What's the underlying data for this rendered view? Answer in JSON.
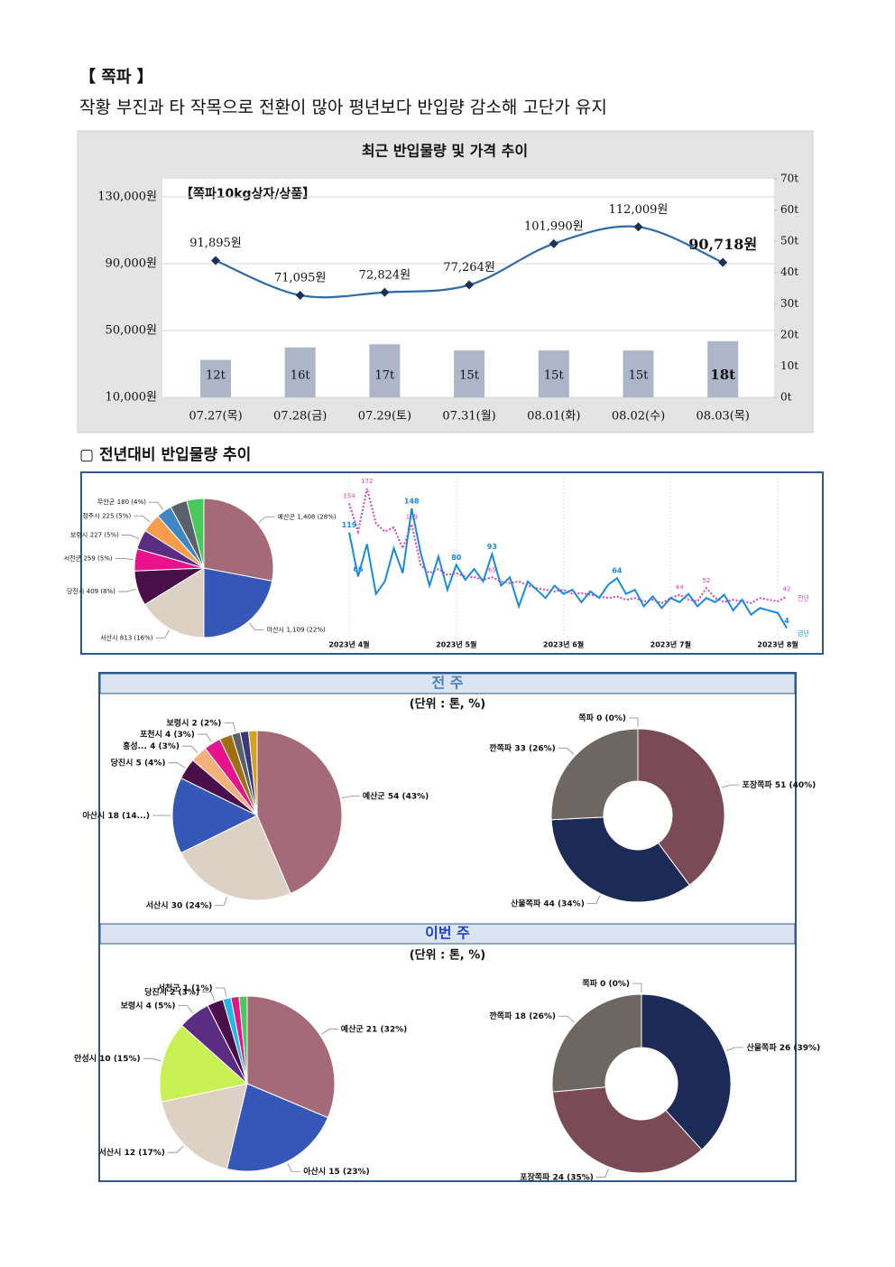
{
  "title": "【 쪽파 】",
  "subtitle": "작황 부진과 타 작목으로 전환이 많아 평년보다 반입량 감소해 고단가 유지",
  "section_title": "▢ 전년대비 반입물량 추이",
  "panels": [
    {
      "header": "전 주",
      "unit": "(단위 : 톤, %)"
    },
    {
      "header": "이번 주",
      "unit": "(단위 : 톤, %)"
    }
  ],
  "chart_data": [
    {
      "type": "bar_line",
      "title": "최근 반입물량 및 가격 추이",
      "annotation": "【쪽파10kg상자/상품】",
      "categories": [
        "07.27(목)",
        "07.28(금)",
        "07.29(토)",
        "07.31(월)",
        "08.01(화)",
        "08.02(수)",
        "08.03(목)"
      ],
      "series": [
        {
          "type": "line",
          "color": "#2e6aa8",
          "values": [
            91895,
            71095,
            72824,
            77264,
            101990,
            112009,
            90718
          ],
          "value_labels": [
            "91,895원",
            "71,095원",
            "72,824원",
            "77,264원",
            "101,990원",
            "112,009원",
            "90,718원"
          ]
        },
        {
          "type": "bar",
          "axis": "y2",
          "color": "#adb6c9",
          "values": [
            12,
            16,
            17,
            15,
            15,
            15,
            18
          ],
          "value_labels": [
            "12t",
            "16t",
            "17t",
            "15t",
            "15t",
            "15t",
            "18t"
          ]
        }
      ],
      "ylim": [
        10000,
        130000
      ],
      "yticks": [
        {
          "value": 10000,
          "label": "10,000원"
        },
        {
          "value": 50000,
          "label": "50,000원"
        },
        {
          "value": 90000,
          "label": "90,000원"
        },
        {
          "value": 130000,
          "label": "130,000원"
        }
      ],
      "y2lim": [
        0,
        70
      ],
      "y2ticks": [
        {
          "value": 0,
          "label": "0t"
        },
        {
          "value": 10,
          "label": "10t"
        },
        {
          "value": 20,
          "label": "20t"
        },
        {
          "value": 30,
          "label": "30t"
        },
        {
          "value": 40,
          "label": "40t"
        },
        {
          "value": 50,
          "label": "50t"
        },
        {
          "value": 60,
          "label": "60t"
        },
        {
          "value": 70,
          "label": "70t"
        }
      ],
      "grid": true
    },
    {
      "type": "pie",
      "categories": [
        "예산군",
        "아산시",
        "서산시",
        "당진시",
        "서천군",
        "보령시",
        "청주시",
        "무안군",
        null,
        null
      ],
      "values": [
        1408,
        1109,
        813,
        409,
        259,
        227,
        225,
        180,
        200,
        200
      ],
      "value_labels": [
        "1,408 (28%)",
        "1,109 (22%)",
        "813 (16%)",
        "409 (8%)",
        "259 (5%)",
        "227 (5%)",
        "225 (5%)",
        "180 (4%)",
        null,
        null
      ],
      "colors": [
        "#a56a7a",
        "#3558b8",
        "#ddd0c4",
        "#4a0f4a",
        "#e8128c",
        "#5a2d82",
        "#f59c4d",
        "#3e86c6",
        "#5b6169",
        "#48c95c"
      ]
    },
    {
      "type": "line",
      "categories": [
        "2023년 4월",
        null,
        null,
        null,
        null,
        null,
        null,
        null,
        null,
        null,
        null,
        null,
        "2023년 5월",
        null,
        null,
        null,
        null,
        null,
        null,
        null,
        null,
        null,
        null,
        null,
        "2023년 6월",
        null,
        null,
        null,
        null,
        null,
        null,
        null,
        null,
        null,
        null,
        null,
        "2023년 7월",
        null,
        null,
        null,
        null,
        null,
        null,
        null,
        null,
        null,
        null,
        null,
        "2023년 8월",
        null
      ],
      "series": [
        {
          "name": "전년",
          "color": "#e040b0",
          "dashed": true,
          "values": [
            154,
            120,
            172,
            130,
            120,
            125,
            100,
            129,
            80,
            70,
            75,
            68,
            70,
            66,
            65,
            62,
            65,
            60,
            58,
            60,
            55,
            52,
            50,
            48,
            50,
            45,
            46,
            44,
            42,
            40,
            42,
            38,
            40,
            36,
            38,
            34,
            40,
            44,
            38,
            36,
            52,
            40,
            35,
            38,
            36,
            34,
            40,
            38,
            36,
            42
          ],
          "value_labels": [
            "154",
            null,
            "172",
            null,
            null,
            null,
            null,
            "129",
            null,
            null,
            null,
            null,
            null,
            null,
            null,
            null,
            "65",
            null,
            null,
            null,
            null,
            null,
            null,
            null,
            null,
            null,
            null,
            null,
            null,
            null,
            null,
            null,
            null,
            null,
            null,
            null,
            null,
            "44",
            null,
            null,
            "52",
            null,
            null,
            null,
            null,
            null,
            null,
            null,
            null,
            "42"
          ]
        },
        {
          "name": "금년",
          "color": "#1a8ae0",
          "dashed": false,
          "values": [
            119,
            66,
            105,
            45,
            60,
            100,
            70,
            148,
            95,
            55,
            90,
            50,
            80,
            62,
            75,
            60,
            93,
            55,
            65,
            30,
            60,
            50,
            40,
            55,
            45,
            50,
            35,
            48,
            40,
            56,
            64,
            45,
            50,
            30,
            42,
            28,
            40,
            35,
            45,
            30,
            40,
            35,
            44,
            25,
            38,
            20,
            28,
            25,
            22,
            4
          ],
          "value_labels": [
            "119",
            "66",
            null,
            null,
            null,
            null,
            null,
            "148",
            null,
            null,
            null,
            null,
            "80",
            null,
            null,
            null,
            "93",
            null,
            null,
            null,
            null,
            null,
            null,
            null,
            null,
            null,
            null,
            null,
            null,
            null,
            "64",
            null,
            null,
            null,
            null,
            null,
            null,
            null,
            null,
            null,
            null,
            null,
            null,
            null,
            null,
            null,
            null,
            null,
            null,
            "4"
          ]
        }
      ],
      "ylim": [
        0,
        185
      ]
    },
    {
      "type": "pie",
      "categories": [
        "예산군",
        "서산시",
        "아산시",
        "당진시",
        "홍성...",
        "포천시",
        null,
        "보령시",
        null,
        null
      ],
      "values": [
        54,
        30,
        18,
        5,
        4,
        4,
        3,
        2,
        2,
        2
      ],
      "value_labels": [
        "54 (43%)",
        "30 (24%)",
        "18 (14...)",
        "5 (4%)",
        "4 (3%)",
        "4 (3%)",
        null,
        "2 (2%)",
        null,
        null
      ],
      "colors": [
        "#a56a7a",
        "#ddd0c4",
        "#3558b8",
        "#4a0f4a",
        "#f8b07a",
        "#e8128c",
        "#a07010",
        "#5b6169",
        "#3a3a7a",
        "#d4a418"
      ]
    },
    {
      "type": "donut",
      "categories": [
        "포장쪽파",
        "산물쪽파",
        "깐쪽파",
        "쪽파"
      ],
      "values": [
        51,
        44,
        33,
        0
      ],
      "value_labels": [
        "51 (40%)",
        "44 (34%)",
        "33 (26%)",
        "0 (0%)"
      ],
      "colors": [
        "#7b4a57",
        "#1c2a56",
        "#6e6660",
        "#9aa6c0"
      ]
    },
    {
      "type": "pie",
      "categories": [
        "예산군",
        "아산시",
        "서산시",
        "안성시",
        "보령시",
        "당진시",
        "서천군",
        null,
        null
      ],
      "values": [
        21,
        15,
        12,
        10,
        4,
        2,
        1,
        1,
        1
      ],
      "value_labels": [
        "21 (32%)",
        "15 (23%)",
        "12 (17%)",
        "10 (15%)",
        "4 (5%)",
        "2 (3%)",
        "1 (1%)",
        null,
        null
      ],
      "colors": [
        "#a56a7a",
        "#3558b8",
        "#ddd0c4",
        "#c9f055",
        "#5a2d82",
        "#4a0f4a",
        "#1fb8e8",
        "#e8128c",
        "#48c95c"
      ]
    },
    {
      "type": "donut",
      "categories": [
        "산물쪽파",
        "포장쪽파",
        "깐쪽파",
        "쪽파"
      ],
      "values": [
        26,
        24,
        18,
        0
      ],
      "value_labels": [
        "26 (39%)",
        "24 (35%)",
        "18 (26%)",
        "0 (0%)"
      ],
      "colors": [
        "#1c2a56",
        "#7b4a57",
        "#6e6660",
        "#9aa6c0"
      ]
    }
  ]
}
